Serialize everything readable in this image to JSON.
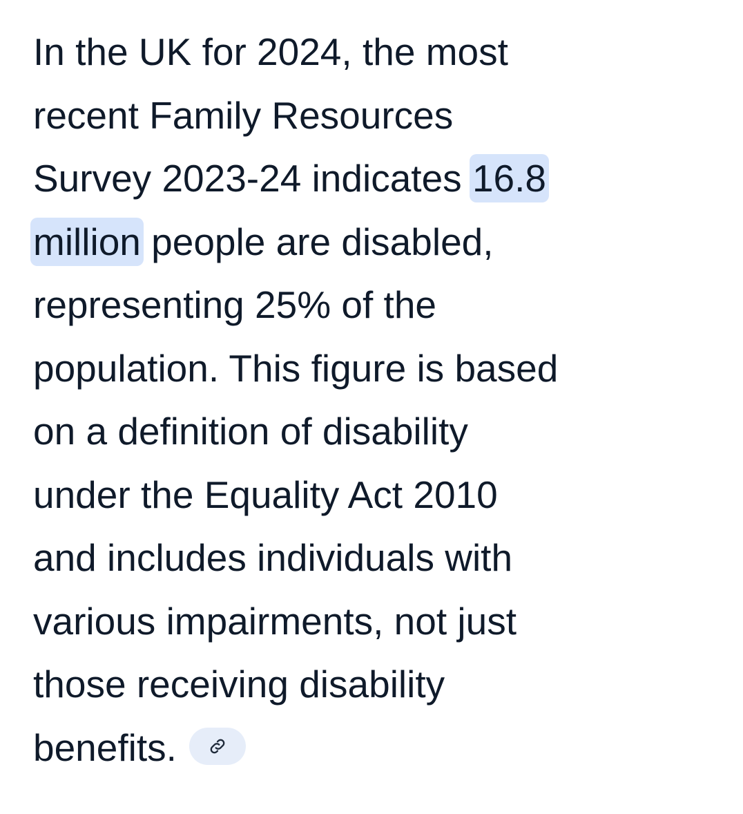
{
  "answer": {
    "lines": [
      [
        {
          "text": "In the UK for 2024, the most"
        }
      ],
      [
        {
          "text": "recent Family Resources"
        }
      ],
      [
        {
          "text": "Survey 2023-24 indicates "
        },
        {
          "text": "16.8",
          "highlighted": true
        }
      ],
      [
        {
          "text": "million",
          "highlighted": true
        },
        {
          "text": " people are disabled,"
        }
      ],
      [
        {
          "text": "representing 25% of the"
        }
      ],
      [
        {
          "text": "population. This figure is based"
        }
      ],
      [
        {
          "text": "on a definition of disability"
        }
      ],
      [
        {
          "text": "under the Equality Act 2010"
        }
      ],
      [
        {
          "text": "and includes individuals with"
        }
      ],
      [
        {
          "text": "various impairments, not just"
        }
      ],
      [
        {
          "text": "those receiving disability"
        }
      ],
      [
        {
          "text": "benefits."
        }
      ]
    ]
  }
}
